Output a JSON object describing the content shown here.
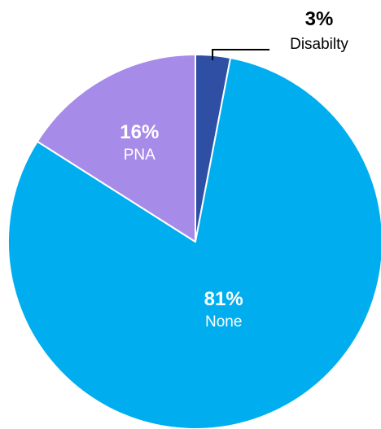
{
  "chart_data": {
    "type": "pie",
    "title": "",
    "start_angle_deg": 0,
    "direction": "clockwise",
    "slices": [
      {
        "label": "Disabilty",
        "value": 3,
        "value_label": "3%",
        "color": "#2E4FA3",
        "label_placement": "outside-callout"
      },
      {
        "label": "None",
        "value": 81,
        "value_label": "81%",
        "color": "#00AEEF",
        "label_placement": "inside"
      },
      {
        "label": "PNA",
        "value": 16,
        "value_label": "16%",
        "color": "#A78BE8",
        "label_placement": "inside"
      }
    ],
    "label_colors": {
      "inside": "#ffffff",
      "outside": "#000000"
    },
    "callout_color": "#000000",
    "slice_border_color": "#ffffff"
  }
}
